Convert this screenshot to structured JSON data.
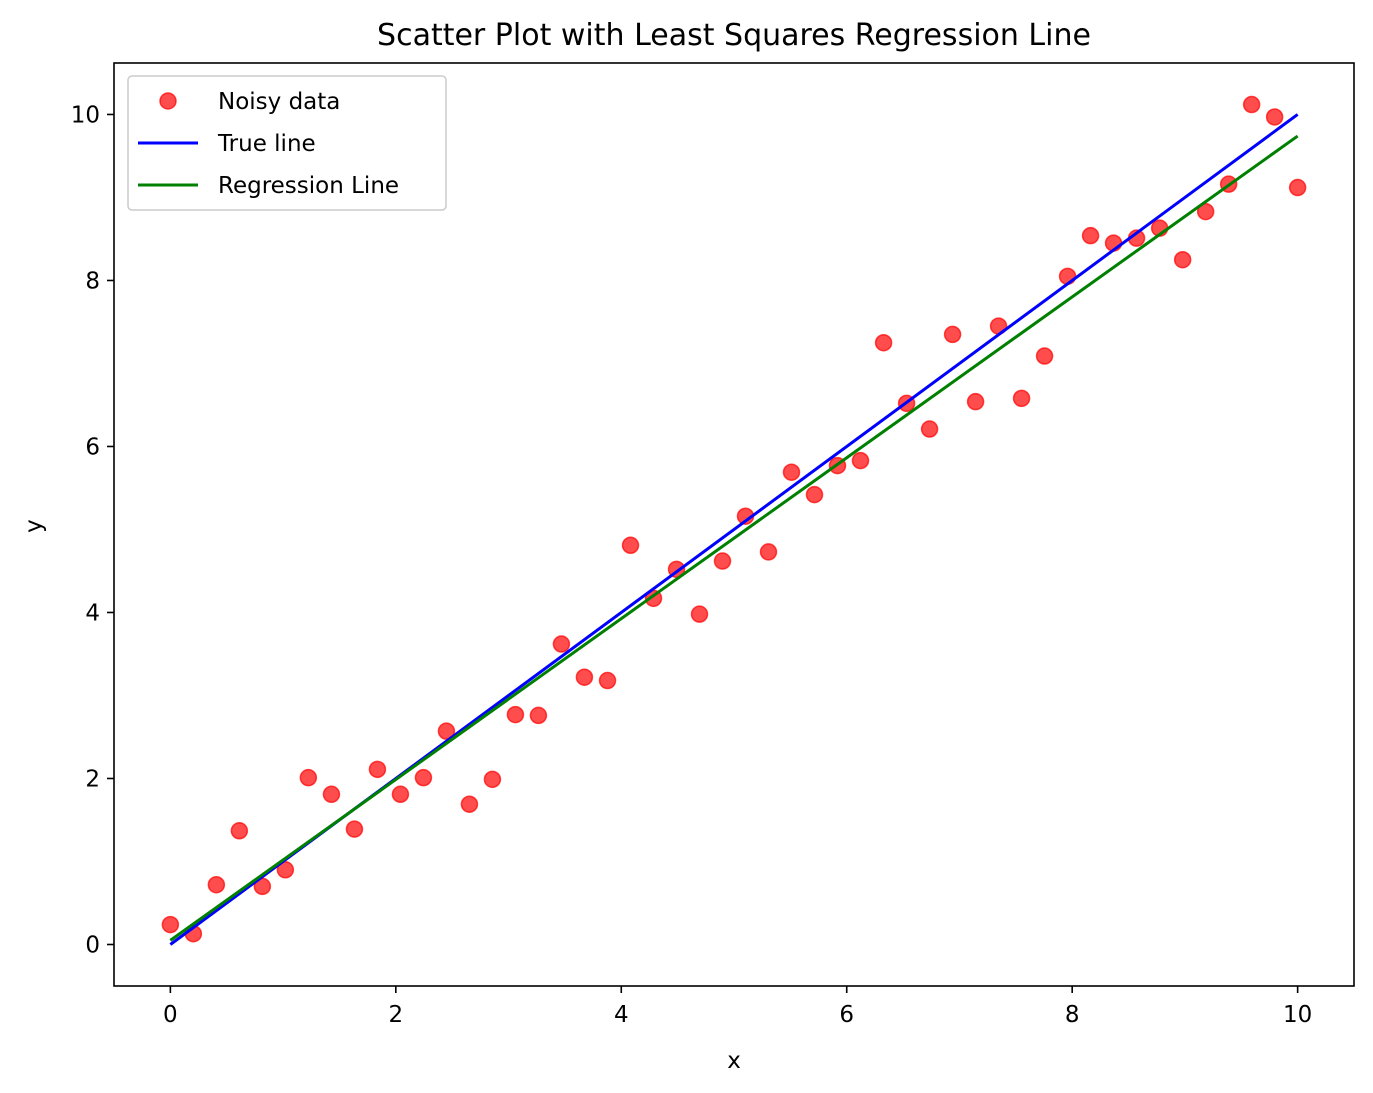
{
  "chart_data": {
    "type": "scatter",
    "title": "Scatter Plot with Least Squares Regression Line",
    "xlabel": "x",
    "ylabel": "y",
    "xlim": [
      -0.5,
      10.5
    ],
    "ylim": [
      -0.5,
      10.62
    ],
    "xticks": [
      0,
      2,
      4,
      6,
      8,
      10
    ],
    "yticks": [
      0,
      2,
      4,
      6,
      8,
      10
    ],
    "grid": false,
    "legend_position": "top-left",
    "series": [
      {
        "name": "Noisy data",
        "kind": "scatter",
        "color": "#ff0000",
        "opacity": 0.7,
        "x": [
          0.0,
          0.204,
          0.408,
          0.612,
          0.816,
          1.02,
          1.224,
          1.429,
          1.633,
          1.837,
          2.041,
          2.245,
          2.449,
          2.653,
          2.857,
          3.061,
          3.265,
          3.469,
          3.673,
          3.878,
          4.082,
          4.286,
          4.49,
          4.694,
          4.898,
          5.102,
          5.306,
          5.51,
          5.714,
          5.918,
          6.122,
          6.327,
          6.531,
          6.735,
          6.939,
          7.143,
          7.347,
          7.551,
          7.755,
          7.959,
          8.163,
          8.367,
          8.571,
          8.776,
          8.98,
          9.184,
          9.388,
          9.592,
          9.796,
          10.0
        ],
        "y": [
          0.24,
          0.13,
          0.72,
          1.37,
          0.7,
          0.9,
          2.01,
          1.81,
          1.39,
          2.11,
          1.81,
          2.01,
          2.57,
          1.69,
          1.99,
          2.77,
          2.76,
          3.62,
          3.22,
          3.18,
          4.81,
          4.17,
          4.52,
          3.98,
          4.62,
          5.16,
          4.73,
          5.69,
          5.42,
          5.77,
          5.83,
          7.25,
          6.52,
          6.21,
          7.35,
          6.54,
          7.45,
          6.58,
          7.09,
          8.05,
          8.54,
          8.45,
          8.51,
          8.63,
          8.25,
          8.83,
          9.16,
          10.12,
          9.97,
          9.12
        ]
      },
      {
        "name": "True line",
        "kind": "line",
        "color": "#0000ff",
        "x": [
          0,
          10
        ],
        "y": [
          0,
          10
        ]
      },
      {
        "name": "Regression Line",
        "kind": "line",
        "color": "#008000",
        "x": [
          0,
          10
        ],
        "y": [
          0.05,
          9.74
        ]
      }
    ]
  }
}
